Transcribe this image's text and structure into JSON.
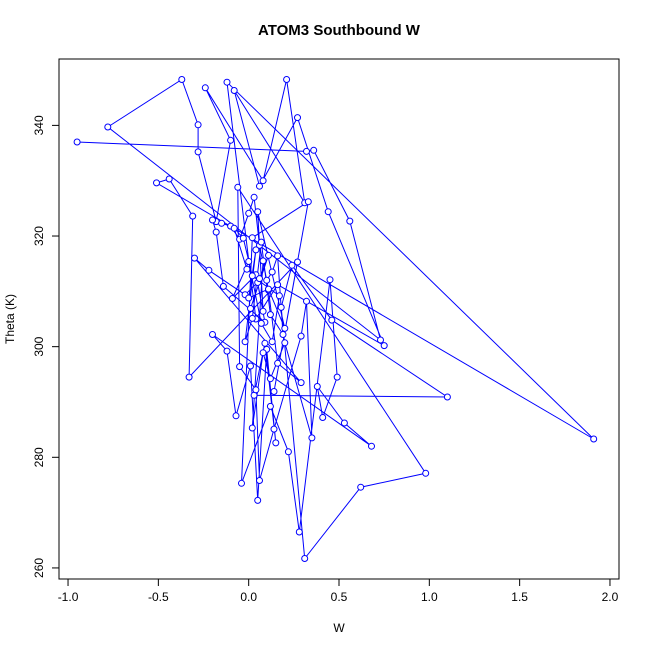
{
  "chart_data": {
    "type": "line",
    "title": "ATOM3 Southbound W",
    "xlabel": "W",
    "ylabel": "Theta (K)",
    "xlim": [
      -1.05,
      2.05
    ],
    "ylim": [
      258,
      352
    ],
    "x_ticks": [
      -1.0,
      -0.5,
      0.0,
      0.5,
      1.0,
      1.5,
      2.0
    ],
    "x_tick_labels": [
      "-1.0",
      "-0.5",
      "0.0",
      "0.5",
      "1.0",
      "1.5",
      "2.0"
    ],
    "y_ticks": [
      260,
      280,
      300,
      320,
      340
    ],
    "y_tick_labels": [
      "260",
      "280",
      "300",
      "320",
      "340"
    ],
    "grid": false,
    "markers": "open-circle",
    "series": [
      {
        "color": "#0000ff",
        "x": [
          -0.95,
          0.32,
          0.36,
          0.56,
          0.73,
          -0.78,
          -0.37,
          -0.28,
          -0.28,
          -0.18,
          -0.1,
          -0.24,
          0.08,
          0.21,
          0.31,
          -0.08,
          0.06,
          0.27,
          0.44,
          0.75,
          0.16,
          0.04,
          -0.12,
          1.91,
          -0.51,
          -0.44,
          -0.31,
          -0.33,
          0.27,
          0.14,
          0.33,
          0.02,
          -0.04,
          0.12,
          0.22,
          0.28,
          0.45,
          0.49,
          0.41,
          0.38,
          0.53,
          0.68,
          -0.2,
          -0.12,
          -0.07,
          0.01,
          0.05,
          0.1,
          0.15,
          0.09,
          0.03,
          1.1,
          0.46,
          0.24,
          0.18,
          0.31,
          0.62,
          0.98,
          -0.06,
          -0.05,
          0.04,
          0.06,
          0.14,
          0.29,
          0.32,
          0.35,
          0.2,
          0.12,
          0.08,
          0.02,
          0.08,
          0.11,
          0.16,
          0.29,
          -0.3,
          -0.22,
          -0.02,
          0.05,
          0.09,
          -0.14,
          -0.18,
          -0.2,
          -0.15,
          -0.1,
          -0.05,
          0.0,
          0.03,
          0.06,
          0.1,
          0.13,
          0.16,
          0.19,
          0.12,
          0.07,
          0.02,
          -0.02,
          0.04,
          0.0,
          0.11,
          0.2,
          0.05,
          0.08,
          0.04,
          -0.09,
          0.0,
          0.07,
          0.13,
          0.17,
          0.02,
          -0.03,
          -0.08,
          -0.01,
          0.06,
          0.11,
          0.01
        ],
        "y": [
          337,
          335.3,
          335.5,
          322.7,
          301.2,
          339.7,
          348.3,
          340.1,
          335.2,
          322.6,
          337.3,
          346.8,
          330,
          348.3,
          326,
          346.3,
          329,
          341.4,
          324.4,
          300.2,
          311.2,
          305,
          347.8,
          283.3,
          329.6,
          330.3,
          323.6,
          294.5,
          315.3,
          291.9,
          326.2,
          319.7,
          275.3,
          289.2,
          281,
          266.5,
          312.1,
          294.5,
          287.2,
          292.8,
          286.2,
          282,
          302.2,
          299.2,
          287.5,
          296.5,
          272.2,
          299.5,
          282.6,
          300.6,
          291.2,
          290.9,
          304.8,
          314.7,
          307.1,
          261.7,
          274.6,
          277.1,
          328.8,
          296.4,
          292.2,
          275.8,
          285.1,
          301.9,
          308.2,
          283.5,
          300.7,
          294.2,
          298.9,
          285.3,
          315.5,
          310.2,
          297,
          293.5,
          316,
          313.8,
          309.4,
          311.6,
          304.4,
          310.9,
          320.7,
          322.9,
          322.3,
          321.8,
          319.4,
          324.1,
          327,
          318.3,
          312,
          313.5,
          316.4,
          302.2,
          305.8,
          318.9,
          305.1,
          300.9,
          317.5,
          308.8,
          310.4,
          303.3,
          324.4,
          306.4,
          313,
          308.7,
          315.4,
          304.2,
          300.9,
          309.2,
          312.8,
          319.6,
          321.4,
          314,
          312.3,
          316.5,
          306.9
        ]
      }
    ]
  }
}
